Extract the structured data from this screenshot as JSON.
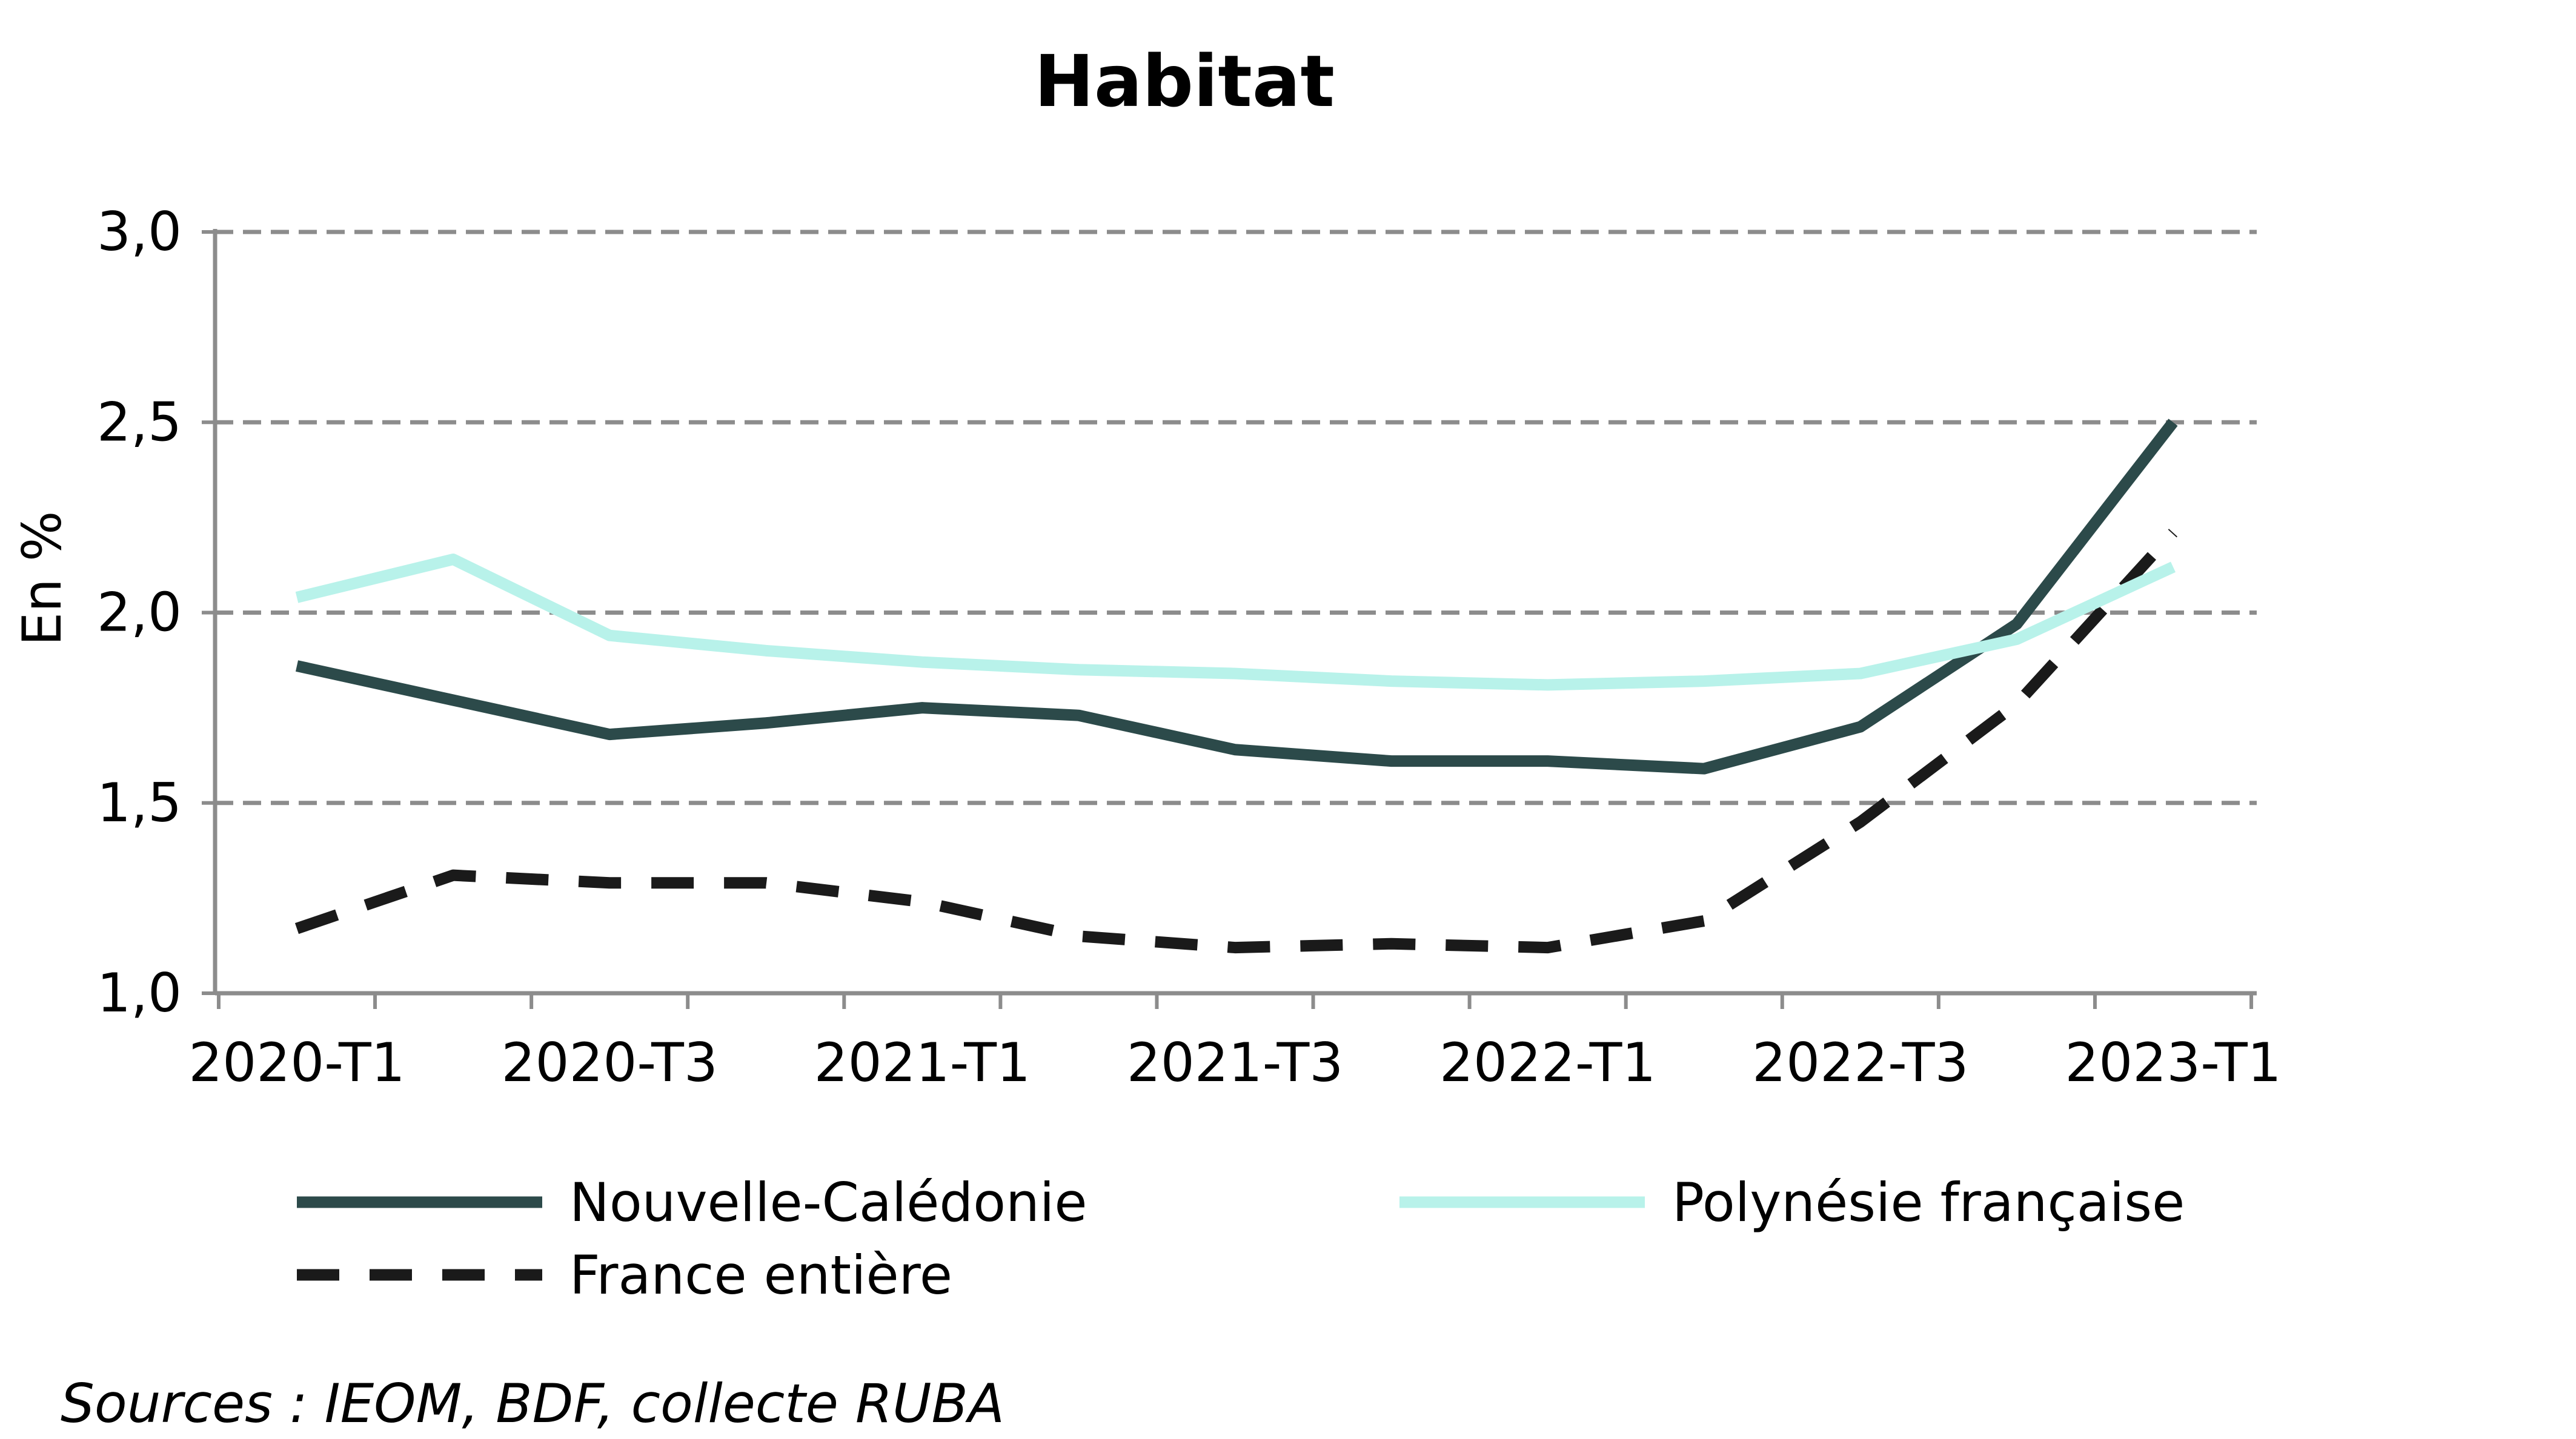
{
  "chart_data": {
    "type": "line",
    "title": "Habitat",
    "ylabel": "En %",
    "xlabel": "",
    "ylim": [
      1.0,
      3.0
    ],
    "yticks": [
      1.0,
      1.5,
      2.0,
      2.5,
      3.0
    ],
    "ytick_labels": [
      "1,0",
      "1,5",
      "2,0",
      "2,5",
      "3,0"
    ],
    "categories": [
      "2020-T1",
      "2020-T2",
      "2020-T3",
      "2020-T4",
      "2021-T1",
      "2021-T2",
      "2021-T3",
      "2021-T4",
      "2022-T1",
      "2022-T2",
      "2022-T3",
      "2022-T4",
      "2023-T1"
    ],
    "xtick_labels": [
      "2020-T1",
      "2020-T3",
      "2021-T1",
      "2021-T3",
      "2022-T1",
      "2022-T3",
      "2023-T1"
    ],
    "grid": true,
    "legend_position": "bottom",
    "series": [
      {
        "name": "Nouvelle-Calédonie",
        "color": "#2c4a4a",
        "style": "solid",
        "values": [
          1.86,
          1.77,
          1.68,
          1.71,
          1.75,
          1.73,
          1.64,
          1.61,
          1.61,
          1.59,
          1.7,
          1.97,
          2.5
        ]
      },
      {
        "name": "Polynésie française",
        "color": "#b8f2ea",
        "style": "solid",
        "values": [
          2.04,
          2.14,
          1.94,
          1.9,
          1.87,
          1.85,
          1.84,
          1.82,
          1.81,
          1.82,
          1.84,
          1.93,
          2.12
        ]
      },
      {
        "name": "France entière",
        "color": "#1a1a1a",
        "style": "dashed",
        "values": [
          1.17,
          1.31,
          1.29,
          1.29,
          1.24,
          1.15,
          1.12,
          1.13,
          1.12,
          1.19,
          1.45,
          1.76,
          2.21
        ]
      }
    ]
  },
  "source": "Sources : IEOM, BDF, collecte RUBA"
}
